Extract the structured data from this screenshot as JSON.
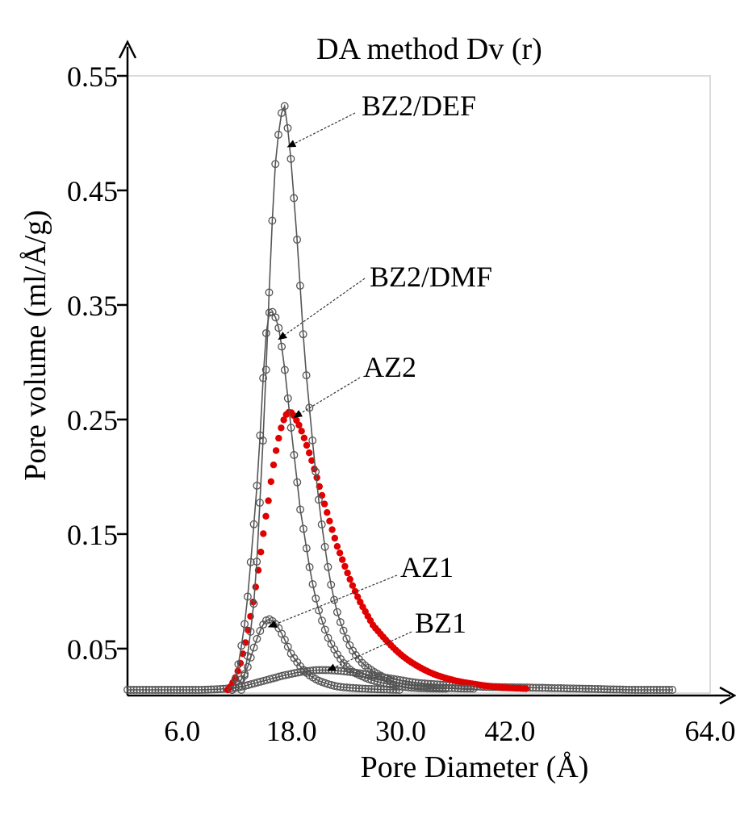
{
  "chart_data": {
    "type": "scatter",
    "title": "DA method Dv (r)",
    "xlabel": "Pore Diameter (Å)",
    "ylabel": "Pore volume (ml/Å/g)",
    "x_ticks": [
      "6.0",
      "18.0",
      "30.0",
      "42.0",
      "64.0"
    ],
    "y_ticks": [
      "0.05",
      "0.15",
      "0.25",
      "0.35",
      "0.45",
      "0.55"
    ],
    "xlim": [
      0,
      64
    ],
    "ylim": [
      0.014,
      0.55
    ],
    "grid": false,
    "series": [
      {
        "name": "BZ2/DEF",
        "style": "open-circle-line",
        "color": "#555555",
        "x": [
          12.5,
          14.0,
          15.0,
          15.8,
          16.2,
          17.0,
          17.5,
          18.5,
          19.5,
          21.0,
          22.5,
          24.0,
          25.5,
          27.0,
          29.0,
          31.0,
          34.0,
          38.0
        ],
        "y": [
          0.014,
          0.1,
          0.25,
          0.4,
          0.47,
          0.52,
          0.51,
          0.42,
          0.3,
          0.18,
          0.1,
          0.06,
          0.04,
          0.03,
          0.022,
          0.018,
          0.016,
          0.015
        ]
      },
      {
        "name": "BZ2/DMF",
        "style": "open-circle-line",
        "color": "#555555",
        "x": [
          11.5,
          13.0,
          14.3,
          15.3,
          16.2,
          17.0,
          18.0,
          19.0,
          20.5,
          22.0,
          24.0,
          26.0,
          28.0,
          31.0,
          35.0
        ],
        "y": [
          0.014,
          0.08,
          0.2,
          0.33,
          0.34,
          0.31,
          0.24,
          0.17,
          0.1,
          0.06,
          0.035,
          0.025,
          0.02,
          0.016,
          0.015
        ]
      },
      {
        "name": "AZ2",
        "style": "filled-circle",
        "color": "#e00000",
        "x": [
          11.0,
          12.5,
          14.0,
          15.5,
          16.5,
          17.5,
          18.5,
          20.0,
          21.5,
          23.0,
          25.0,
          27.0,
          30.0,
          33.0,
          36.0,
          40.0,
          44.0
        ],
        "y": [
          0.014,
          0.04,
          0.1,
          0.18,
          0.23,
          0.255,
          0.25,
          0.22,
          0.18,
          0.14,
          0.1,
          0.07,
          0.045,
          0.03,
          0.022,
          0.017,
          0.015
        ]
      },
      {
        "name": "AZ1",
        "style": "open-circle-line",
        "color": "#555555",
        "x": [
          11.5,
          13.0,
          14.3,
          15.3,
          16.2,
          17.0,
          18.0,
          19.5,
          21.0,
          23.0,
          26.0,
          30.0
        ],
        "y": [
          0.014,
          0.03,
          0.06,
          0.075,
          0.072,
          0.062,
          0.045,
          0.03,
          0.022,
          0.017,
          0.015,
          0.014
        ]
      },
      {
        "name": "BZ1",
        "style": "open-circle-line",
        "color": "#555555",
        "x": [
          0,
          8.0,
          12.0,
          15.0,
          18.0,
          20.5,
          22.5,
          25.0,
          28.0,
          32.0,
          38.0,
          44.0,
          50.0,
          56.0,
          60.0
        ],
        "y": [
          0.014,
          0.014,
          0.016,
          0.022,
          0.028,
          0.031,
          0.031,
          0.029,
          0.025,
          0.02,
          0.017,
          0.016,
          0.015,
          0.014,
          0.014
        ]
      }
    ],
    "annotations": [
      {
        "text": "BZ2/DEF",
        "series": "BZ2/DEF"
      },
      {
        "text": "BZ2/DMF",
        "series": "BZ2/DMF"
      },
      {
        "text": "AZ2",
        "series": "AZ2"
      },
      {
        "text": "AZ1",
        "series": "AZ1"
      },
      {
        "text": "BZ1",
        "series": "BZ1"
      }
    ]
  }
}
